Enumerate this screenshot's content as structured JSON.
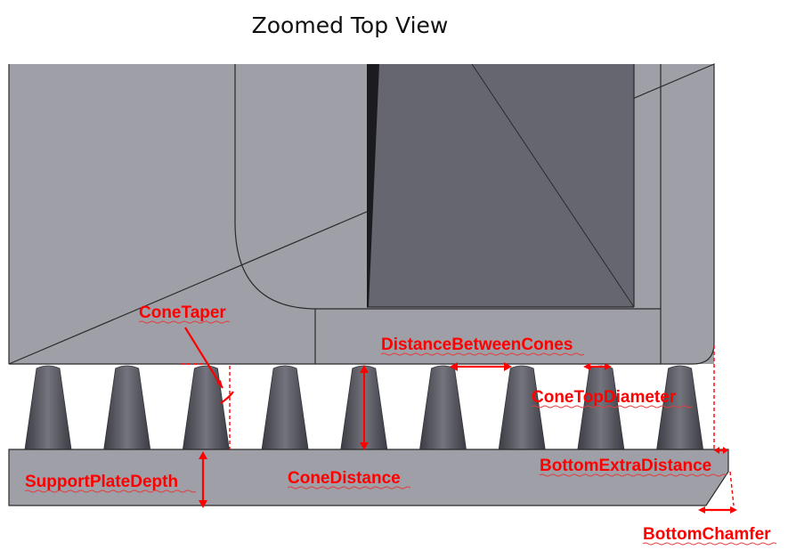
{
  "title": "Zoomed Top View",
  "labels": {
    "cone_taper": "ConeTaper",
    "distance_between_cones": "DistanceBetweenCones",
    "cone_top_diameter": "ConeTopDiameter",
    "bottom_extra_distance": "BottomExtraDistance",
    "support_plate_depth": "SupportPlateDepth",
    "cone_distance": "ConeDistance",
    "bottom_chamfer": "BottomChamfer"
  },
  "colors": {
    "body_gray": "#9f9fa8",
    "dark_panel": "#666670",
    "cone_gray": "#585860",
    "annotation_red": "#ff0000",
    "edge_line": "#2b2b2b"
  },
  "cone_count": 9
}
